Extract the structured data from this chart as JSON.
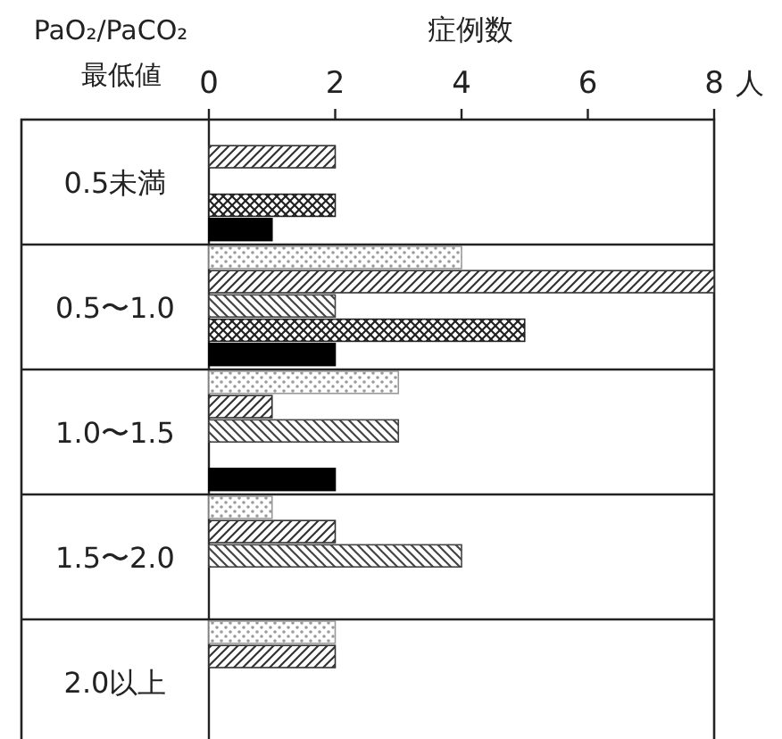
{
  "chart_data": {
    "type": "bar",
    "orientation": "horizontal",
    "title": "症例数",
    "ylabel": "PaO₂/PaCO₂ 最低値",
    "xlabel": "人",
    "categories": [
      "0.5未満",
      "0.5〜1.0",
      "1.0〜1.5",
      "1.5〜2.0",
      "2.0以上"
    ],
    "series": [
      {
        "color": "#9a9a9a",
        "values": [
          0,
          4,
          3,
          1,
          2
        ]
      },
      {
        "color": "#333333",
        "values": [
          2,
          8,
          1,
          2,
          2
        ]
      },
      {
        "color": "#444444",
        "values": [
          0,
          2,
          3,
          4,
          0
        ]
      },
      {
        "color": "#222222",
        "values": [
          2,
          5,
          0,
          0,
          0
        ]
      },
      {
        "color": "#000000",
        "values": [
          1,
          2,
          2,
          0,
          0
        ]
      }
    ],
    "xlim": [
      0,
      8
    ],
    "xticks": [
      0,
      2,
      4,
      6,
      8
    ],
    "grid": false
  }
}
